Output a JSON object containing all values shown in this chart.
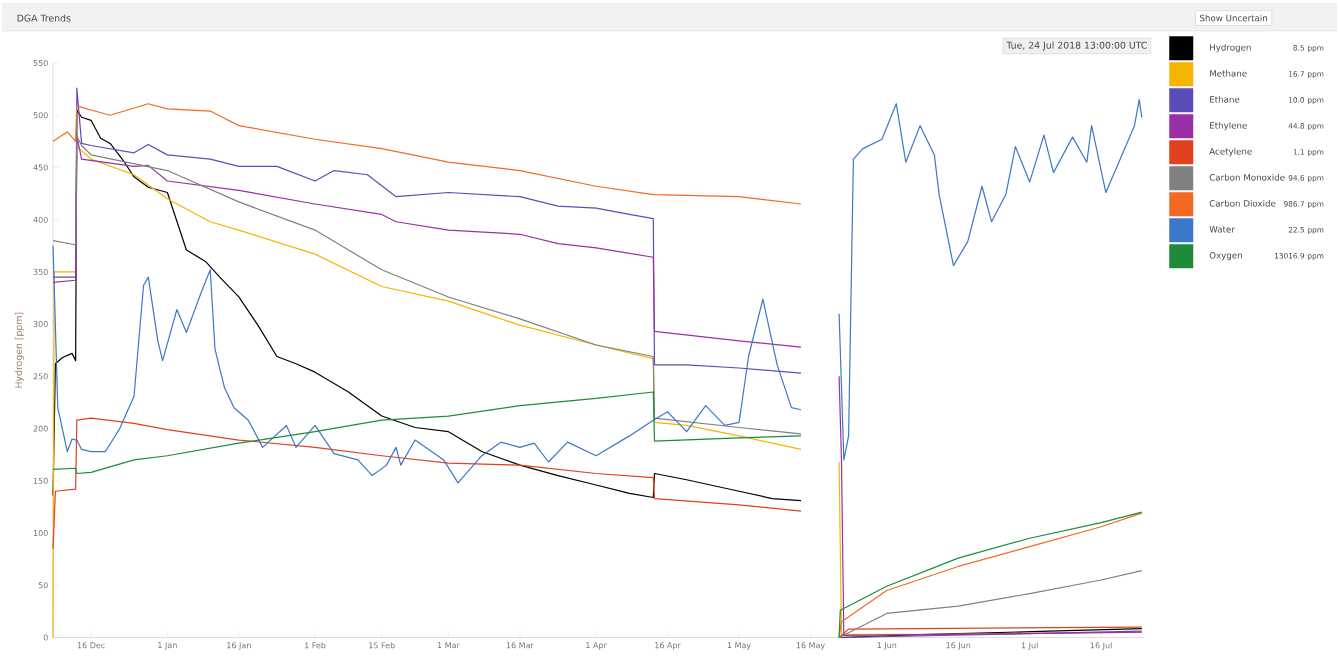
{
  "chart_data": {
    "type": "line",
    "title": "DGA Trends",
    "ylabel": "Hydrogen [ppm]",
    "annotations": [
      "Tue, 24 Jul 2018 13:00:00 UTC",
      "Show Uncertain",
      "8.5 ppm",
      "16.7 ppm",
      "10.0 ppm",
      "44.8 ppm",
      "1.1 ppm",
      "94.6 ppm",
      "986.7 ppm",
      "22.5 ppm",
      "13016.9 ppm"
    ],
    "xlim": [
      "2017-12-08",
      "2018-07-25"
    ],
    "xticks": [
      {
        "value": "2017-12-16",
        "label": "16 Dec"
      },
      {
        "value": "2018-01-01",
        "label": "1 Jan"
      },
      {
        "value": "2018-01-16",
        "label": "16 Jan"
      },
      {
        "value": "2018-02-01",
        "label": "1 Feb"
      },
      {
        "value": "2018-02-15",
        "label": "15 Feb"
      },
      {
        "value": "2018-03-01",
        "label": "1 Mar"
      },
      {
        "value": "2018-03-16",
        "label": "16 Mar"
      },
      {
        "value": "2018-04-01",
        "label": "1 Apr"
      },
      {
        "value": "2018-04-16",
        "label": "16 Apr"
      },
      {
        "value": "2018-05-01",
        "label": "1 May"
      },
      {
        "value": "2018-05-16",
        "label": "16 May"
      },
      {
        "value": "2018-06-01",
        "label": "1 Jun"
      },
      {
        "value": "2018-06-16",
        "label": "16 Jun"
      },
      {
        "value": "2018-07-01",
        "label": "1 Jul"
      },
      {
        "value": "2018-07-16",
        "label": "16 Jul"
      }
    ],
    "ylim": [
      0,
      550
    ],
    "yticks": [
      0,
      50,
      100,
      150,
      200,
      250,
      300,
      350,
      400,
      450,
      500,
      550
    ],
    "legend": "right",
    "series": [
      {
        "name": "Hydrogen",
        "color": "#000000",
        "x": [
          "2017-12-08",
          "2017-12-08T12:00",
          "2017-12-10",
          "2017-12-12",
          "2017-12-12T18:00",
          "2017-12-13",
          "2017-12-14",
          "2017-12-16",
          "2017-12-18",
          "2017-12-20",
          "2017-12-23",
          "2017-12-25",
          "2017-12-28",
          "2018-01-01",
          "2018-01-05",
          "2018-01-09",
          "2018-01-12",
          "2018-01-16",
          "2018-01-20",
          "2018-01-24",
          "2018-01-28",
          "2018-02-01",
          "2018-02-08",
          "2018-02-15",
          "2018-02-22",
          "2018-03-01",
          "2018-03-08",
          "2018-03-16",
          "2018-03-24",
          "2018-04-01",
          "2018-04-08",
          "2018-04-13",
          "2018-04-13T06:00",
          "2018-04-20",
          "2018-05-01",
          "2018-05-08",
          "2018-05-14",
          "2018-05-18",
          "2018-05-22",
          "2018-06-10",
          "2018-07-05",
          "2018-07-24T13:00"
        ],
        "values": [
          136,
          262,
          268,
          272,
          265,
          505,
          498,
          495,
          478,
          473,
          455,
          441,
          431,
          426,
          371,
          360,
          345,
          326,
          299,
          269,
          262,
          254,
          235,
          212,
          201,
          197,
          178,
          165,
          155,
          146,
          138,
          134,
          157,
          151,
          140,
          133,
          131,
          null,
          0,
          3,
          6,
          8.5
        ]
      },
      {
        "name": "Methane",
        "color": "#f5b400",
        "x": [
          "2017-12-08",
          "2017-12-08T06:00",
          "2017-12-12T18:00",
          "2017-12-13",
          "2017-12-16",
          "2017-12-25",
          "2018-01-01",
          "2018-01-10",
          "2018-01-16",
          "2018-02-01",
          "2018-02-15",
          "2018-03-01",
          "2018-03-16",
          "2018-04-01",
          "2018-04-13",
          "2018-04-13T06:00",
          "2018-04-20",
          "2018-05-01",
          "2018-05-14",
          "2018-05-18",
          "2018-05-22",
          "2018-05-22T12:00",
          "2018-06-15",
          "2018-07-24T13:00"
        ],
        "values": [
          0,
          350,
          350,
          470,
          458,
          443,
          420,
          398,
          390,
          367,
          336,
          322,
          299,
          280,
          267,
          206,
          203,
          193,
          180,
          null,
          168,
          3,
          3,
          5
        ]
      },
      {
        "name": "Ethane",
        "color": "#5b4db8",
        "x": [
          "2017-12-08",
          "2017-12-12T18:00",
          "2017-12-13",
          "2017-12-14",
          "2017-12-16",
          "2017-12-25",
          "2017-12-28",
          "2018-01-01",
          "2018-01-10",
          "2018-01-16",
          "2018-01-24",
          "2018-02-01",
          "2018-02-05",
          "2018-02-12",
          "2018-02-18",
          "2018-03-01",
          "2018-03-16",
          "2018-03-24",
          "2018-04-01",
          "2018-04-08",
          "2018-04-13",
          "2018-04-13T06:00",
          "2018-04-20",
          "2018-05-01",
          "2018-05-14",
          "2018-05-18",
          "2018-05-22",
          "2018-07-24T13:00"
        ],
        "values": [
          345,
          345,
          526,
          473,
          471,
          464,
          472,
          462,
          458,
          451,
          451,
          437,
          447,
          443,
          422,
          426,
          422,
          413,
          411,
          405,
          401,
          261,
          261,
          258,
          253,
          null,
          0,
          6
        ]
      },
      {
        "name": "Ethylene",
        "color": "#9b2fa6",
        "x": [
          "2017-12-08",
          "2017-12-12T18:00",
          "2017-12-13",
          "2017-12-14",
          "2017-12-25",
          "2017-12-28",
          "2018-01-01",
          "2018-01-16",
          "2018-02-01",
          "2018-02-15",
          "2018-02-18",
          "2018-03-01",
          "2018-03-16",
          "2018-03-24",
          "2018-04-01",
          "2018-04-13",
          "2018-04-13T06:00",
          "2018-05-01",
          "2018-05-14",
          "2018-05-18",
          "2018-05-22",
          "2018-05-22T12:00",
          "2018-05-23",
          "2018-07-24T13:00"
        ],
        "values": [
          340,
          342,
          480,
          458,
          451,
          452,
          437,
          428,
          415,
          405,
          398,
          390,
          386,
          377,
          373,
          364,
          293,
          284,
          278,
          null,
          250,
          170,
          2,
          5
        ]
      },
      {
        "name": "Acetylene",
        "color": "#e0401e",
        "x": [
          "2017-12-08",
          "2017-12-08T12:00",
          "2017-12-12T18:00",
          "2017-12-13",
          "2017-12-16",
          "2017-12-25",
          "2018-01-01",
          "2018-01-16",
          "2018-02-01",
          "2018-02-15",
          "2018-03-01",
          "2018-03-16",
          "2018-04-01",
          "2018-04-13",
          "2018-04-13T06:00",
          "2018-05-01",
          "2018-05-14",
          "2018-05-18",
          "2018-05-22",
          "2018-05-24",
          "2018-07-24T13:00"
        ],
        "values": [
          85,
          140,
          142,
          208,
          210,
          205,
          199,
          189,
          182,
          174,
          167,
          165,
          157,
          153,
          133,
          127,
          121,
          null,
          0,
          8,
          10
        ]
      },
      {
        "name": "Carbon Monoxide",
        "color": "#808080",
        "x": [
          "2017-12-08",
          "2017-12-12T18:00",
          "2017-12-13",
          "2017-12-14",
          "2017-12-16",
          "2018-01-01",
          "2018-01-16",
          "2018-02-01",
          "2018-02-15",
          "2018-03-01",
          "2018-03-16",
          "2018-04-01",
          "2018-04-13",
          "2018-04-13T06:00",
          "2018-05-01",
          "2018-05-14",
          "2018-05-18",
          "2018-05-22",
          "2018-06-01",
          "2018-06-16",
          "2018-07-01",
          "2018-07-16",
          "2018-07-24T13:00"
        ],
        "values": [
          380,
          376,
          480,
          471,
          462,
          447,
          417,
          390,
          352,
          326,
          305,
          280,
          269,
          210,
          201,
          195,
          null,
          0,
          23,
          30,
          42,
          55,
          64
        ]
      },
      {
        "name": "Carbon Dioxide",
        "color": "#f26a22",
        "x": [
          "2017-12-08",
          "2017-12-11",
          "2017-12-12T18:00",
          "2017-12-13",
          "2017-12-16",
          "2017-12-20",
          "2017-12-28",
          "2018-01-01",
          "2018-01-10",
          "2018-01-16",
          "2018-02-01",
          "2018-02-15",
          "2018-03-01",
          "2018-03-16",
          "2018-04-01",
          "2018-04-13",
          "2018-05-01",
          "2018-05-14",
          "2018-05-18",
          "2018-05-22",
          "2018-05-22T12:00",
          "2018-06-01",
          "2018-06-16",
          "2018-07-01",
          "2018-07-16",
          "2018-07-24T13:00"
        ],
        "values": [
          475,
          484,
          475,
          509,
          505,
          500,
          511,
          506,
          504,
          490,
          477,
          468,
          455,
          447,
          432,
          424,
          422,
          415,
          null,
          0,
          15,
          45,
          68,
          87,
          106,
          119
        ]
      },
      {
        "name": "Water",
        "color": "#3a78c8",
        "x": [
          "2017-12-08",
          "2017-12-09",
          "2017-12-11",
          "2017-12-12",
          "2017-12-13",
          "2017-12-14",
          "2017-12-16",
          "2017-12-19",
          "2017-12-22",
          "2017-12-25",
          "2017-12-27",
          "2017-12-28",
          "2017-12-30",
          "2017-12-31",
          "2018-01-03",
          "2018-01-05",
          "2018-01-08",
          "2018-01-10",
          "2018-01-11",
          "2018-01-13",
          "2018-01-15",
          "2018-01-18",
          "2018-01-21",
          "2018-01-26",
          "2018-01-28",
          "2018-02-01",
          "2018-02-05",
          "2018-02-10",
          "2018-02-13",
          "2018-02-16",
          "2018-02-18",
          "2018-02-19",
          "2018-02-22",
          "2018-02-28",
          "2018-03-03",
          "2018-03-08",
          "2018-03-12",
          "2018-03-16",
          "2018-03-19",
          "2018-03-22",
          "2018-03-26",
          "2018-04-01",
          "2018-04-08",
          "2018-04-13",
          "2018-04-16",
          "2018-04-20",
          "2018-04-24",
          "2018-04-28",
          "2018-05-01",
          "2018-05-03",
          "2018-05-06",
          "2018-05-09",
          "2018-05-12",
          "2018-05-14",
          "2018-05-18",
          "2018-05-22",
          "2018-05-23",
          "2018-05-24",
          "2018-05-25",
          "2018-05-27",
          "2018-05-31",
          "2018-06-03",
          "2018-06-05",
          "2018-06-08",
          "2018-06-11",
          "2018-06-12",
          "2018-06-15",
          "2018-06-18",
          "2018-06-21",
          "2018-06-23",
          "2018-06-26",
          "2018-06-28",
          "2018-07-01",
          "2018-07-04",
          "2018-07-06",
          "2018-07-10",
          "2018-07-13",
          "2018-07-14",
          "2018-07-17",
          "2018-07-20",
          "2018-07-23",
          "2018-07-24",
          "2018-07-24T13:00"
        ],
        "values": [
          375,
          220,
          178,
          190,
          189,
          180,
          178,
          178,
          200,
          231,
          337,
          345,
          284,
          265,
          314,
          292,
          329,
          352,
          276,
          239,
          220,
          208,
          182,
          203,
          182,
          203,
          176,
          170,
          155,
          165,
          182,
          165,
          189,
          170,
          148,
          174,
          187,
          182,
          186,
          168,
          187,
          174,
          193,
          208,
          216,
          197,
          222,
          203,
          206,
          269,
          324,
          261,
          220,
          218,
          null,
          310,
          170,
          193,
          458,
          468,
          477,
          511,
          455,
          490,
          462,
          424,
          356,
          379,
          432,
          398,
          424,
          470,
          436,
          481,
          445,
          479,
          455,
          490,
          426,
          458,
          490,
          515,
          498
        ]
      },
      {
        "name": "Oxygen",
        "color": "#1e8a3a",
        "x": [
          "2017-12-08",
          "2017-12-12T18:00",
          "2017-12-13",
          "2017-12-16",
          "2017-12-25",
          "2018-01-01",
          "2018-01-16",
          "2018-02-01",
          "2018-02-15",
          "2018-03-01",
          "2018-03-16",
          "2018-04-01",
          "2018-04-13",
          "2018-04-13T06:00",
          "2018-05-01",
          "2018-05-14",
          "2018-05-18",
          "2018-05-22",
          "2018-05-22T06:00",
          "2018-06-01",
          "2018-06-16",
          "2018-07-01",
          "2018-07-16",
          "2018-07-24T13:00"
        ],
        "values": [
          161,
          162,
          157,
          158,
          170,
          174,
          186,
          197,
          208,
          212,
          222,
          229,
          235,
          188,
          191,
          193,
          null,
          0,
          26,
          49,
          76,
          95,
          110,
          120
        ]
      }
    ]
  }
}
